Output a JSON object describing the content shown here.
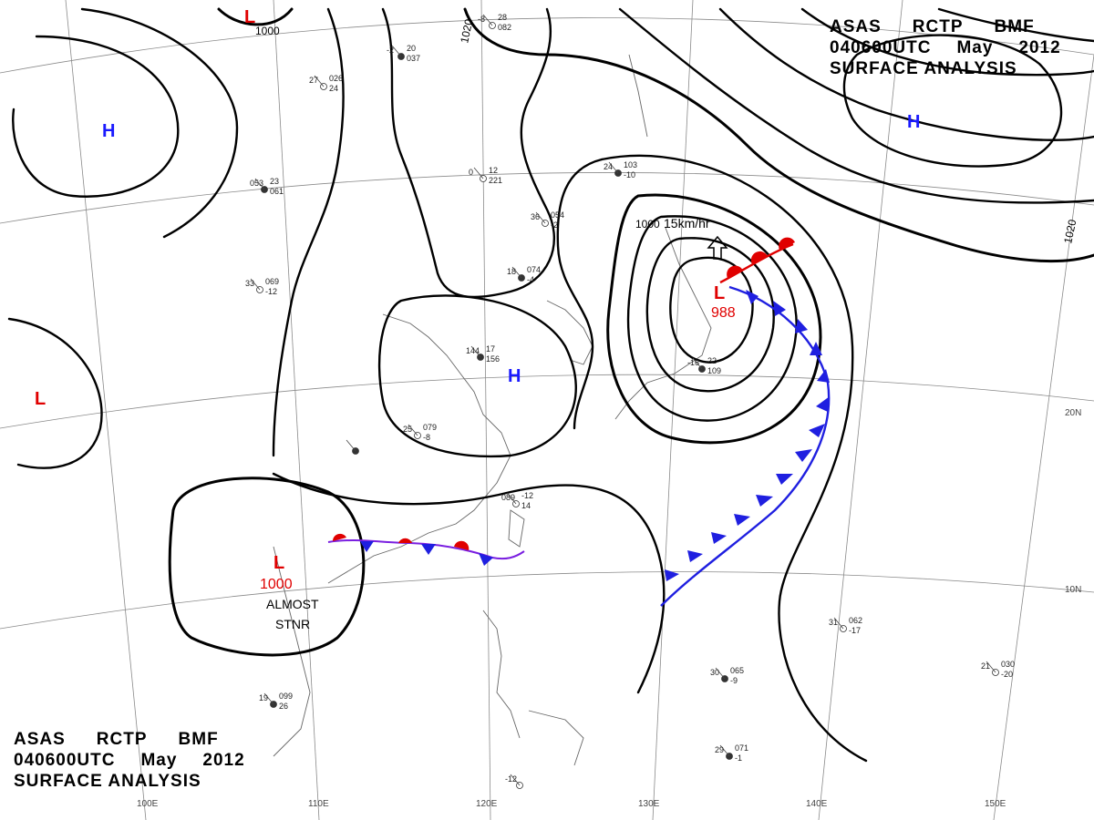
{
  "header_top": {
    "line1": [
      "ASAS",
      "RCTP",
      "BMF"
    ],
    "line2": [
      "040600UTC",
      "May",
      "2012"
    ],
    "line3": "SURFACE  ANALYSIS"
  },
  "header_bottom": {
    "line1": [
      "ASAS",
      "RCTP",
      "BMF"
    ],
    "line2": [
      "040600UTC",
      "May",
      "2012"
    ],
    "line3": "SURFACE  ANALYSIS"
  },
  "isobar_labels": [
    "1000",
    "1020",
    "1000",
    "1020"
  ],
  "pressure_centers": [
    {
      "symbol": "H",
      "color": "#1a1aff"
    },
    {
      "symbol": "H",
      "color": "#1a1aff"
    },
    {
      "symbol": "H",
      "color": "#1a1aff"
    },
    {
      "symbol": "L",
      "color": "#e00000"
    },
    {
      "symbol": "L",
      "color": "#e00000",
      "value": "1000"
    },
    {
      "symbol": "L",
      "color": "#e00000",
      "value": "988"
    },
    {
      "symbol": "L",
      "color": "#e00000"
    }
  ],
  "annotations": {
    "motion": "15km/hr",
    "stationary_1": "ALMOST",
    "stationary_2": "STNR"
  },
  "longitude_labels": [
    "100E",
    "110E",
    "120E",
    "130E",
    "140E",
    "150E"
  ],
  "latitude_labels": [
    "20N",
    "10N"
  ],
  "station_samples": [
    "27",
    "026",
    "24",
    "053",
    "23",
    "061",
    "33",
    "069",
    "-12",
    "30",
    "065",
    "-9",
    "31",
    "062",
    "-17",
    "29",
    "071",
    "-1",
    "21",
    "030",
    "-20",
    "24",
    "103",
    "-10",
    "25",
    "079",
    "-8",
    "18",
    "074",
    "-4",
    "36",
    "054",
    "-2",
    "19",
    "099",
    "26",
    "089",
    "-12",
    "14",
    "144",
    "17",
    "156",
    "0",
    "12",
    "221",
    "-2",
    "20",
    "037",
    "-8",
    "28",
    "082",
    "-16",
    "22",
    "109",
    "-12"
  ]
}
